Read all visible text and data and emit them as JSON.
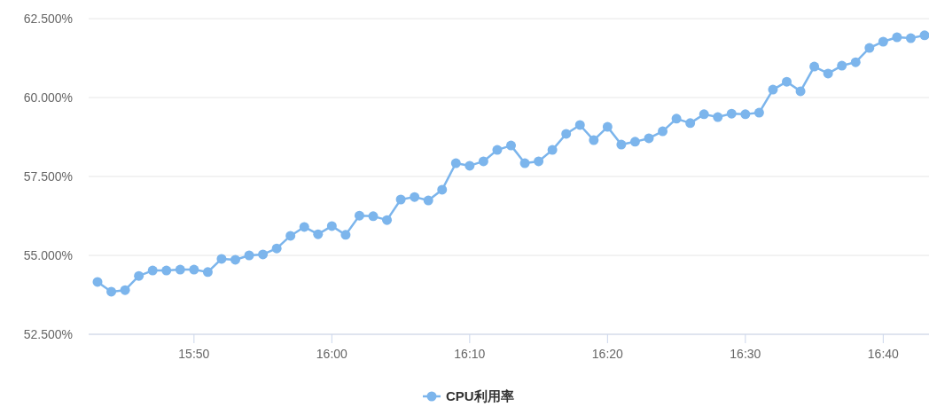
{
  "chart_data": {
    "type": "line",
    "categories": [
      null,
      null,
      null,
      null,
      null,
      null,
      null,
      "15:50",
      null,
      null,
      null,
      null,
      null,
      null,
      null,
      null,
      null,
      "16:00",
      null,
      null,
      null,
      null,
      null,
      null,
      null,
      null,
      null,
      "16:10",
      null,
      null,
      null,
      null,
      null,
      null,
      null,
      null,
      null,
      "16:20",
      null,
      null,
      null,
      null,
      null,
      null,
      null,
      null,
      null,
      "16:30",
      null,
      null,
      null,
      null,
      null,
      null,
      null,
      null,
      null,
      "16:40",
      null,
      null,
      null
    ],
    "series": [
      {
        "name": "CPU利用率",
        "color": "#7cb5ec",
        "values": [
          54.16,
          53.85,
          53.9,
          54.35,
          54.52,
          54.52,
          54.55,
          54.55,
          54.47,
          54.89,
          54.86,
          55.0,
          55.03,
          55.22,
          55.62,
          55.9,
          55.67,
          55.93,
          55.65,
          56.26,
          56.24,
          56.12,
          56.77,
          56.85,
          56.74,
          57.08,
          57.92,
          57.84,
          57.98,
          58.34,
          58.48,
          57.92,
          57.98,
          58.34,
          58.85,
          59.13,
          58.65,
          59.07,
          58.51,
          58.6,
          58.71,
          58.93,
          59.33,
          59.19,
          59.47,
          59.38,
          59.49,
          59.47,
          59.52,
          60.25,
          60.5,
          60.2,
          60.98,
          60.76,
          61.01,
          61.12,
          61.57,
          61.77,
          61.91,
          61.88,
          61.97
        ]
      }
    ],
    "ylim": [
      52.5,
      62.5
    ],
    "yticks": [
      {
        "value": 52.5,
        "label": "52.500%"
      },
      {
        "value": 55,
        "label": "55.000%"
      },
      {
        "value": 57.5,
        "label": "57.500%"
      },
      {
        "value": 60,
        "label": "60.000%"
      },
      {
        "value": 62.5,
        "label": "62.500%"
      }
    ],
    "grid": "y",
    "legend": "bottom",
    "marker": "circle",
    "line_style": "solid"
  }
}
